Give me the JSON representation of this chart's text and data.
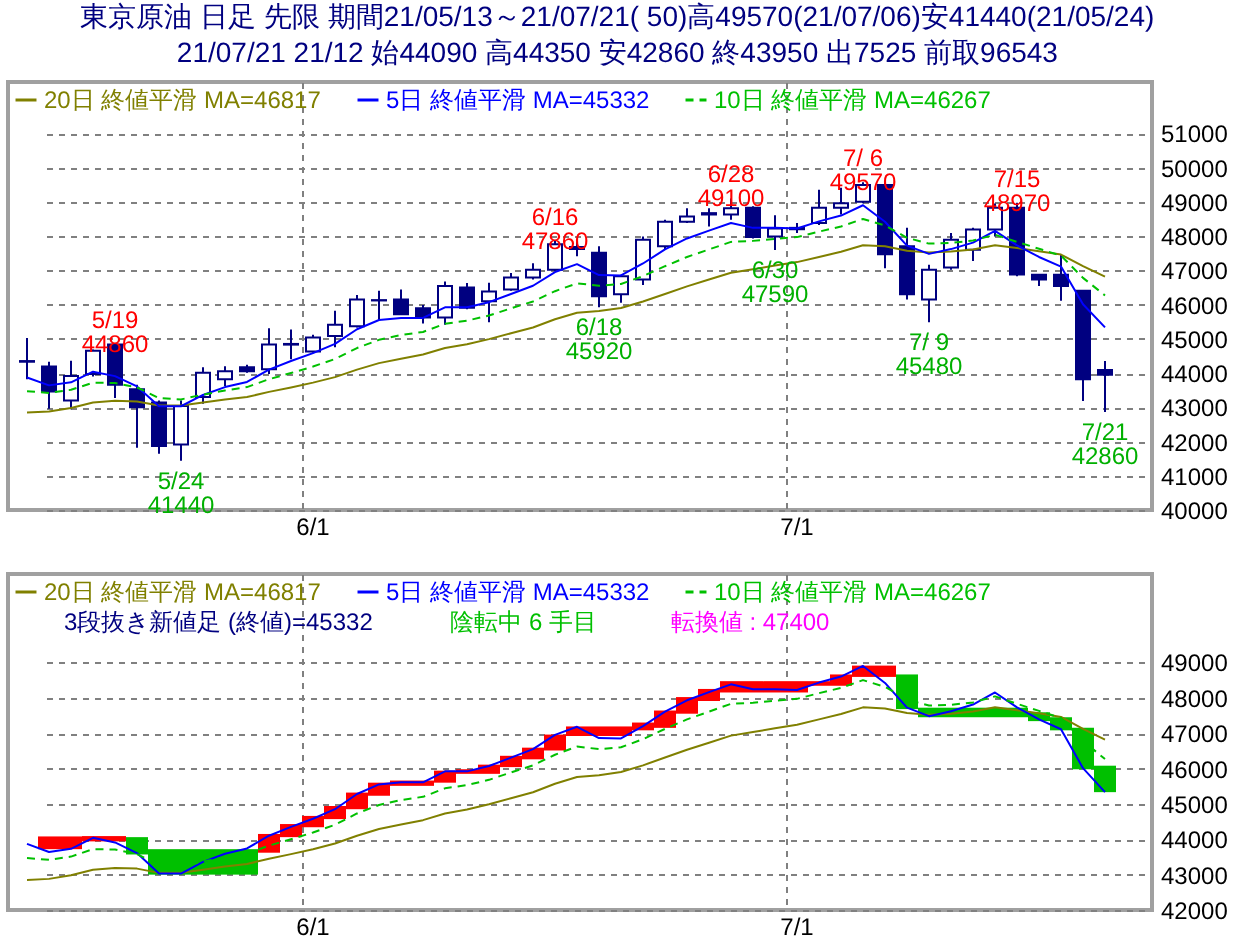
{
  "chart_data": [
    {
      "type": "candlestick",
      "title": "東京原油 日足 先限 期間21/05/13～21/07/21( 50)高49570(21/07/06)安41440(21/05/24)",
      "subtitle": "21/07/21 21/12 始44090 高44350 安42860 終43950 出7525 前取96543",
      "categories": [
        null,
        null,
        null,
        null,
        null,
        null,
        null,
        null,
        null,
        null,
        null,
        null,
        null,
        "6/1",
        null,
        null,
        null,
        null,
        null,
        null,
        null,
        null,
        null,
        null,
        null,
        null,
        null,
        null,
        null,
        null,
        null,
        null,
        null,
        null,
        null,
        "7/1",
        null,
        null,
        null,
        null,
        null,
        null,
        null,
        null,
        null,
        null,
        null,
        null,
        null,
        null
      ],
      "ohlc": [
        [
          44350,
          45020,
          43820,
          44330
        ],
        [
          44190,
          44330,
          42960,
          43460
        ],
        [
          43200,
          44360,
          42940,
          43910
        ],
        [
          43970,
          44690,
          43900,
          44650
        ],
        [
          44830,
          44860,
          43270,
          43660
        ],
        [
          43530,
          43660,
          41820,
          43000
        ],
        [
          43140,
          43200,
          41640,
          41870
        ],
        [
          41910,
          43200,
          41440,
          43040
        ],
        [
          43300,
          44170,
          43100,
          44010
        ],
        [
          43820,
          44200,
          43620,
          44050
        ],
        [
          44170,
          44240,
          44010,
          44050
        ],
        [
          44110,
          45310,
          43970,
          44830
        ],
        [
          44850,
          45270,
          44400,
          44830
        ],
        [
          44630,
          45120,
          44590,
          45040
        ],
        [
          45080,
          45820,
          44750,
          45410
        ],
        [
          45370,
          46280,
          45330,
          46150
        ],
        [
          46130,
          46400,
          45560,
          46120
        ],
        [
          46150,
          46440,
          45700,
          45720
        ],
        [
          45890,
          45990,
          45450,
          45620
        ],
        [
          45620,
          46670,
          45410,
          46540
        ],
        [
          46500,
          46630,
          45860,
          45910
        ],
        [
          46100,
          46640,
          45480,
          46380
        ],
        [
          46440,
          46920,
          46400,
          46790
        ],
        [
          46790,
          47210,
          46730,
          47020
        ],
        [
          47020,
          47860,
          46980,
          47760
        ],
        [
          47680,
          47840,
          47410,
          47620
        ],
        [
          47510,
          47700,
          45920,
          46240
        ],
        [
          46300,
          46870,
          46050,
          46830
        ],
        [
          46730,
          47990,
          46570,
          47890
        ],
        [
          47700,
          48480,
          47600,
          48420
        ],
        [
          48420,
          48810,
          48380,
          48570
        ],
        [
          48670,
          48810,
          48280,
          48630
        ],
        [
          48630,
          49100,
          48480,
          48810
        ],
        [
          48830,
          48870,
          47930,
          47970
        ],
        [
          47990,
          48610,
          47590,
          48220
        ],
        [
          48240,
          48380,
          48090,
          48200
        ],
        [
          48380,
          49350,
          48320,
          48830
        ],
        [
          48830,
          49410,
          48630,
          48960
        ],
        [
          49000,
          49570,
          48960,
          49490
        ],
        [
          49490,
          49560,
          47060,
          47470
        ],
        [
          47700,
          48240,
          46150,
          46300
        ],
        [
          46150,
          47160,
          45480,
          47020
        ],
        [
          47080,
          48090,
          47020,
          47890
        ],
        [
          47600,
          48240,
          47270,
          48190
        ],
        [
          48190,
          48950,
          47990,
          48830
        ],
        [
          48830,
          48970,
          46830,
          46880
        ],
        [
          46870,
          46880,
          46540,
          46730
        ],
        [
          46870,
          47450,
          46110,
          46540
        ],
        [
          46400,
          46420,
          43180,
          43820
        ],
        [
          44090,
          44350,
          42860,
          43950
        ]
      ],
      "color": "#000080",
      "series": [
        {
          "name": "20日 終値平滑 MA=46817",
          "type": "line",
          "color": "#808000",
          "line_style": "solid",
          "values": [
            42850,
            42880,
            42980,
            43140,
            43190,
            43170,
            43050,
            43050,
            43140,
            43230,
            43300,
            43450,
            43580,
            43720,
            43880,
            44100,
            44290,
            44420,
            44540,
            44730,
            44840,
            44990,
            45160,
            45330,
            45570,
            45760,
            45810,
            45900,
            46090,
            46310,
            46530,
            46730,
            46930,
            47030,
            47140,
            47240,
            47390,
            47540,
            47730,
            47700,
            47570,
            47520,
            47550,
            47610,
            47730,
            47650,
            47560,
            47460,
            47120,
            46817
          ]
        },
        {
          "name": "5日 終値平滑 MA=45332",
          "type": "line",
          "color": "#0000ff",
          "line_style": "solid",
          "values": [
            43870,
            43640,
            43730,
            44040,
            43910,
            43610,
            43030,
            43030,
            43360,
            43590,
            43740,
            44100,
            44350,
            44580,
            44850,
            45280,
            45550,
            45610,
            45610,
            45920,
            45920,
            46070,
            46310,
            46550,
            46950,
            47180,
            46860,
            46850,
            47200,
            47610,
            47930,
            48160,
            48380,
            48240,
            48240,
            48220,
            48430,
            48600,
            48900,
            48420,
            47720,
            47480,
            47620,
            47810,
            48150,
            47730,
            47390,
            47110,
            46010,
            45332
          ]
        },
        {
          "name": "10日 終値平滑 MA=46267",
          "type": "line",
          "color": "#00c000",
          "line_style": "dashed",
          "values": [
            43470,
            43420,
            43510,
            43720,
            43710,
            43580,
            43270,
            43230,
            43370,
            43490,
            43590,
            43820,
            44000,
            44190,
            44410,
            44730,
            44970,
            45110,
            45200,
            45440,
            45530,
            45680,
            45890,
            46090,
            46390,
            46620,
            46550,
            46600,
            46830,
            47120,
            47390,
            47610,
            47830,
            47860,
            47920,
            47970,
            48130,
            48280,
            48500,
            48310,
            47950,
            47780,
            47800,
            47870,
            48040,
            47830,
            47630,
            47430,
            46780,
            46267
          ]
        }
      ],
      "ylim": [
        40000,
        52500
      ],
      "yticks": [
        40000,
        41000,
        42000,
        43000,
        44000,
        45000,
        46000,
        47000,
        48000,
        49000,
        50000,
        51000
      ],
      "grid": true,
      "legend": "top left",
      "annotations": [
        {
          "text": "5/19\n44860",
          "y": 44860
        },
        {
          "text": "5/24\n41440",
          "y": 41440
        },
        {
          "text": "6/16\n47860",
          "y": 47860
        },
        {
          "text": "6/18\n45920",
          "y": 45920
        },
        {
          "text": "6/28\n49100",
          "y": 49100
        },
        {
          "text": "6/30\n47590",
          "y": 47590
        },
        {
          "text": "7/ 6\n49570",
          "y": 49570
        },
        {
          "text": "7/ 9\n45480",
          "y": 45480
        },
        {
          "text": "7/15\n48970",
          "y": 48970
        },
        {
          "text": "7/21\n42860",
          "y": 42860
        }
      ]
    },
    {
      "type": "bar",
      "categories": [
        null,
        null,
        null,
        null,
        null,
        null,
        null,
        null,
        null,
        null,
        null,
        null,
        null,
        "6/1",
        null,
        null,
        null,
        null,
        null,
        null,
        null,
        null,
        null,
        null,
        null,
        null,
        null,
        null,
        null,
        null,
        null,
        null,
        null,
        null,
        null,
        "7/1",
        null,
        null,
        null,
        null,
        null,
        null,
        null,
        null,
        null,
        null,
        null,
        null,
        null,
        null
      ],
      "series": [
        {
          "base": [
            null,
            43720,
            43720,
            43940,
            43940,
            43570,
            43000,
            43000,
            43000,
            43000,
            43000,
            43620,
            44060,
            44340,
            44570,
            44850,
            45230,
            45510,
            45510,
            45600,
            45850,
            45850,
            46040,
            46260,
            46510,
            46920,
            46920,
            46920,
            47080,
            47150,
            47550,
            47910,
            48150,
            48150,
            48150,
            48150,
            48340,
            48340,
            48590,
            48590,
            47680,
            47450,
            47450,
            47450,
            47450,
            47450,
            47340,
            47080,
            45980,
            45332
          ],
          "values": [
            null,
            360,
            360,
            150,
            150,
            490,
            720,
            720,
            720,
            720,
            720,
            530,
            370,
            320,
            370,
            470,
            370,
            150,
            150,
            340,
            130,
            260,
            320,
            330,
            450,
            270,
            270,
            270,
            220,
            490,
            470,
            340,
            320,
            320,
            320,
            320,
            130,
            320,
            320,
            320,
            980,
            270,
            270,
            270,
            270,
            270,
            250,
            370,
            1170,
            748
          ],
          "colors": [
            null,
            "#ff0000",
            "#ff0000",
            "#ff0000",
            "#ff0000",
            "#00c000",
            "#00c000",
            "#00c000",
            "#00c000",
            "#00c000",
            "#00c000",
            "#ff0000",
            "#ff0000",
            "#ff0000",
            "#ff0000",
            "#ff0000",
            "#ff0000",
            "#ff0000",
            "#ff0000",
            "#ff0000",
            "#ff0000",
            "#ff0000",
            "#ff0000",
            "#ff0000",
            "#ff0000",
            "#ff0000",
            "#ff0000",
            "#ff0000",
            "#ff0000",
            "#ff0000",
            "#ff0000",
            "#ff0000",
            "#ff0000",
            "#ff0000",
            "#ff0000",
            "#ff0000",
            "#ff0000",
            "#ff0000",
            "#ff0000",
            "#ff0000",
            "#00c000",
            "#00c000",
            "#00c000",
            "#00c000",
            "#00c000",
            "#00c000",
            "#00c000",
            "#00c000",
            "#00c000",
            "#00c000"
          ]
        },
        {
          "name": "20日 終値平滑 MA=46817",
          "type": "line",
          "color": "#808000",
          "line_style": "solid",
          "values": [
            42850,
            42880,
            42980,
            43140,
            43190,
            43170,
            43050,
            43050,
            43140,
            43230,
            43300,
            43450,
            43580,
            43720,
            43880,
            44100,
            44290,
            44420,
            44540,
            44730,
            44840,
            44990,
            45160,
            45330,
            45570,
            45760,
            45810,
            45900,
            46090,
            46310,
            46530,
            46730,
            46930,
            47030,
            47140,
            47240,
            47390,
            47540,
            47730,
            47700,
            47570,
            47520,
            47550,
            47610,
            47730,
            47650,
            47560,
            47460,
            47120,
            46817
          ]
        },
        {
          "name": "5日 終値平滑 MA=45332",
          "type": "line",
          "color": "#0000ff",
          "line_style": "solid",
          "values": [
            43870,
            43640,
            43730,
            44040,
            43910,
            43610,
            43030,
            43030,
            43360,
            43590,
            43740,
            44100,
            44350,
            44580,
            44850,
            45280,
            45550,
            45610,
            45610,
            45920,
            45920,
            46070,
            46310,
            46550,
            46950,
            47180,
            46860,
            46850,
            47200,
            47610,
            47930,
            48160,
            48380,
            48240,
            48240,
            48220,
            48430,
            48600,
            48900,
            48420,
            47720,
            47480,
            47620,
            47810,
            48150,
            47730,
            47390,
            47110,
            46010,
            45332
          ]
        },
        {
          "name": "10日 終値平滑 MA=46267",
          "type": "line",
          "color": "#00c000",
          "line_style": "dashed",
          "values": [
            43470,
            43420,
            43510,
            43720,
            43710,
            43580,
            43270,
            43230,
            43370,
            43490,
            43590,
            43820,
            44000,
            44190,
            44410,
            44730,
            44970,
            45110,
            45200,
            45440,
            45530,
            45680,
            45890,
            46090,
            46390,
            46620,
            46550,
            46600,
            46830,
            47120,
            47390,
            47610,
            47830,
            47860,
            47920,
            47970,
            48130,
            48280,
            48500,
            48310,
            47950,
            47780,
            47800,
            47870,
            48040,
            47830,
            47630,
            47430,
            46780,
            46267
          ]
        }
      ],
      "ylim": [
        42000,
        51500
      ],
      "yticks": [
        42000,
        43000,
        44000,
        45000,
        46000,
        47000,
        48000,
        49000
      ],
      "grid": true,
      "legend": "top left",
      "annotations": [
        "3段抜き新値足 (終値)=45332",
        "陰転中 6 手目",
        "転換値 : 47400"
      ]
    }
  ]
}
